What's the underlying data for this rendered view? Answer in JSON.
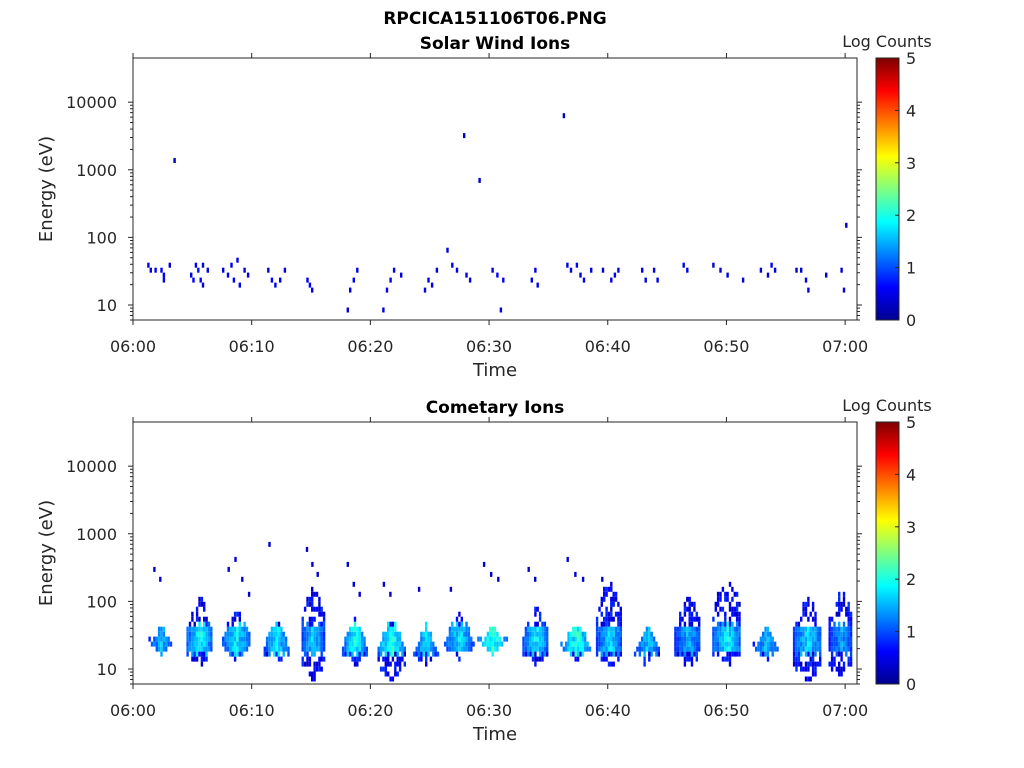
{
  "figure": {
    "title": "RPCICA151106T06.PNG"
  },
  "chart_data": [
    {
      "type": "heatmap",
      "title": "Solar Wind Ions",
      "xlabel": "Time",
      "ylabel": "Energy (eV)",
      "x_ticks": [
        "06:00",
        "06:10",
        "06:20",
        "06:30",
        "06:40",
        "06:50",
        "07:00"
      ],
      "xlim": [
        "06:00",
        "07:01"
      ],
      "y_scale": "log",
      "y_ticks": [
        10,
        100,
        1000,
        10000
      ],
      "y_tick_labels": [
        "10",
        "100",
        "1000",
        "10000"
      ],
      "ylim": [
        6,
        45000
      ],
      "colorbar": {
        "label": "Log Counts",
        "range": [
          0,
          5
        ],
        "ticks": [
          "0",
          "1",
          "2",
          "3",
          "4",
          "5"
        ],
        "colormap": "jet"
      },
      "cells": [
        {
          "t": 1.2,
          "e": 38,
          "c": 0.5
        },
        {
          "t": 1.4,
          "e": 33,
          "c": 0.5
        },
        {
          "t": 1.8,
          "e": 33,
          "c": 0.6
        },
        {
          "t": 2.3,
          "e": 33,
          "c": 0.6
        },
        {
          "t": 2.5,
          "e": 28,
          "c": 0.5
        },
        {
          "t": 2.5,
          "e": 24,
          "c": 0.5
        },
        {
          "t": 3.0,
          "e": 38,
          "c": 0.4
        },
        {
          "t": 3.4,
          "e": 1300,
          "c": 0.3
        },
        {
          "t": 4.8,
          "e": 28,
          "c": 0.5
        },
        {
          "t": 5.0,
          "e": 24,
          "c": 0.6
        },
        {
          "t": 5.2,
          "e": 38,
          "c": 0.6
        },
        {
          "t": 5.4,
          "e": 33,
          "c": 0.7
        },
        {
          "t": 5.6,
          "e": 24,
          "c": 0.6
        },
        {
          "t": 5.8,
          "e": 38,
          "c": 0.5
        },
        {
          "t": 5.8,
          "e": 20,
          "c": 0.5
        },
        {
          "t": 6.2,
          "e": 33,
          "c": 0.5
        },
        {
          "t": 7.5,
          "e": 33,
          "c": 0.4
        },
        {
          "t": 7.9,
          "e": 28,
          "c": 0.5
        },
        {
          "t": 8.2,
          "e": 38,
          "c": 0.5
        },
        {
          "t": 8.4,
          "e": 24,
          "c": 0.6
        },
        {
          "t": 8.7,
          "e": 48,
          "c": 0.5
        },
        {
          "t": 8.9,
          "e": 20,
          "c": 0.5
        },
        {
          "t": 9.3,
          "e": 33,
          "c": 0.5
        },
        {
          "t": 9.6,
          "e": 28,
          "c": 0.4
        },
        {
          "t": 11.3,
          "e": 33,
          "c": 0.4
        },
        {
          "t": 11.6,
          "e": 24,
          "c": 0.6
        },
        {
          "t": 11.9,
          "e": 20,
          "c": 0.6
        },
        {
          "t": 12.3,
          "e": 24,
          "c": 0.5
        },
        {
          "t": 12.7,
          "e": 33,
          "c": 0.5
        },
        {
          "t": 14.6,
          "e": 24,
          "c": 0.5
        },
        {
          "t": 14.8,
          "e": 20,
          "c": 0.6
        },
        {
          "t": 15.0,
          "e": 17,
          "c": 0.5
        },
        {
          "t": 18.0,
          "e": 8,
          "c": 0.4
        },
        {
          "t": 18.2,
          "e": 17,
          "c": 0.5
        },
        {
          "t": 18.5,
          "e": 24,
          "c": 0.6
        },
        {
          "t": 18.8,
          "e": 33,
          "c": 0.5
        },
        {
          "t": 21.0,
          "e": 8,
          "c": 0.4
        },
        {
          "t": 21.3,
          "e": 17,
          "c": 0.6
        },
        {
          "t": 21.6,
          "e": 24,
          "c": 0.6
        },
        {
          "t": 21.9,
          "e": 33,
          "c": 0.5
        },
        {
          "t": 22.5,
          "e": 28,
          "c": 0.5
        },
        {
          "t": 24.5,
          "e": 17,
          "c": 0.6
        },
        {
          "t": 24.8,
          "e": 24,
          "c": 0.6
        },
        {
          "t": 25.1,
          "e": 20,
          "c": 0.5
        },
        {
          "t": 25.5,
          "e": 33,
          "c": 0.5
        },
        {
          "t": 26.4,
          "e": 65,
          "c": 0.4
        },
        {
          "t": 26.8,
          "e": 38,
          "c": 0.5
        },
        {
          "t": 27.2,
          "e": 33,
          "c": 0.6
        },
        {
          "t": 27.8,
          "e": 3300,
          "c": 0.3
        },
        {
          "t": 28.0,
          "e": 28,
          "c": 0.5
        },
        {
          "t": 28.3,
          "e": 24,
          "c": 0.5
        },
        {
          "t": 29.1,
          "e": 650,
          "c": 0.3
        },
        {
          "t": 30.2,
          "e": 33,
          "c": 0.5
        },
        {
          "t": 30.6,
          "e": 28,
          "c": 0.6
        },
        {
          "t": 30.9,
          "e": 8,
          "c": 0.5
        },
        {
          "t": 31.1,
          "e": 24,
          "c": 0.6
        },
        {
          "t": 33.5,
          "e": 24,
          "c": 0.5
        },
        {
          "t": 33.8,
          "e": 33,
          "c": 0.5
        },
        {
          "t": 34.0,
          "e": 20,
          "c": 0.5
        },
        {
          "t": 36.2,
          "e": 6700,
          "c": 0.3
        },
        {
          "t": 36.5,
          "e": 38,
          "c": 0.5
        },
        {
          "t": 36.8,
          "e": 33,
          "c": 0.5
        },
        {
          "t": 37.3,
          "e": 38,
          "c": 0.6
        },
        {
          "t": 37.6,
          "e": 28,
          "c": 0.5
        },
        {
          "t": 37.9,
          "e": 24,
          "c": 0.5
        },
        {
          "t": 38.5,
          "e": 33,
          "c": 0.5
        },
        {
          "t": 39.5,
          "e": 33,
          "c": 0.4
        },
        {
          "t": 40.2,
          "e": 24,
          "c": 0.5
        },
        {
          "t": 40.5,
          "e": 28,
          "c": 0.5
        },
        {
          "t": 40.8,
          "e": 33,
          "c": 0.6
        },
        {
          "t": 42.8,
          "e": 33,
          "c": 0.5
        },
        {
          "t": 43.1,
          "e": 24,
          "c": 0.5
        },
        {
          "t": 43.8,
          "e": 33,
          "c": 0.4
        },
        {
          "t": 44.1,
          "e": 24,
          "c": 0.5
        },
        {
          "t": 46.3,
          "e": 38,
          "c": 0.5
        },
        {
          "t": 46.6,
          "e": 33,
          "c": 0.5
        },
        {
          "t": 48.8,
          "e": 38,
          "c": 0.4
        },
        {
          "t": 49.4,
          "e": 33,
          "c": 0.4
        },
        {
          "t": 50.0,
          "e": 28,
          "c": 0.4
        },
        {
          "t": 51.3,
          "e": 24,
          "c": 0.5
        },
        {
          "t": 52.8,
          "e": 33,
          "c": 0.5
        },
        {
          "t": 53.4,
          "e": 28,
          "c": 0.4
        },
        {
          "t": 53.7,
          "e": 38,
          "c": 0.6
        },
        {
          "t": 54.0,
          "e": 33,
          "c": 0.5
        },
        {
          "t": 55.8,
          "e": 33,
          "c": 0.4
        },
        {
          "t": 56.2,
          "e": 33,
          "c": 0.4
        },
        {
          "t": 56.6,
          "e": 24,
          "c": 0.5
        },
        {
          "t": 56.8,
          "e": 17,
          "c": 0.5
        },
        {
          "t": 58.3,
          "e": 28,
          "c": 0.4
        },
        {
          "t": 59.6,
          "e": 33,
          "c": 0.4
        },
        {
          "t": 59.8,
          "e": 17,
          "c": 0.5
        },
        {
          "t": 60.0,
          "e": 150,
          "c": 0.3
        }
      ]
    },
    {
      "type": "heatmap",
      "title": "Cometary Ions",
      "xlabel": "Time",
      "ylabel": "Energy (eV)",
      "x_ticks": [
        "06:00",
        "06:10",
        "06:20",
        "06:30",
        "06:40",
        "06:50",
        "07:00"
      ],
      "xlim": [
        "06:00",
        "07:01"
      ],
      "y_scale": "log",
      "y_ticks": [
        10,
        100,
        1000,
        10000
      ],
      "y_tick_labels": [
        "10",
        "100",
        "1000",
        "10000"
      ],
      "ylim": [
        6,
        45000
      ],
      "colorbar": {
        "label": "Log Counts",
        "range": [
          0,
          5
        ],
        "ticks": [
          "0",
          "1",
          "2",
          "3",
          "4",
          "5"
        ],
        "colormap": "jet"
      },
      "bursts": [
        {
          "t0": 1.3,
          "t1": 3.3,
          "peak": 1.6,
          "lo": 17,
          "hi": 45,
          "sparse": [
            300,
            230
          ]
        },
        {
          "t0": 4.5,
          "t1": 6.6,
          "peak": 2.0,
          "lo": 11,
          "hi": 120,
          "sparse": []
        },
        {
          "t0": 7.5,
          "t1": 9.8,
          "peak": 1.9,
          "lo": 14,
          "hi": 80,
          "sparse": [
            320,
            400,
            200,
            130
          ]
        },
        {
          "t0": 11.0,
          "t1": 13.0,
          "peak": 1.9,
          "lo": 11,
          "hi": 60,
          "sparse": [
            750
          ]
        },
        {
          "t0": 14.2,
          "t1": 16.0,
          "peak": 1.8,
          "lo": 7,
          "hi": 180,
          "sparse": [
            580,
            350,
            260
          ]
        },
        {
          "t0": 17.6,
          "t1": 19.6,
          "peak": 2.0,
          "lo": 11,
          "hi": 60,
          "sparse": [
            330,
            180,
            120
          ]
        },
        {
          "t0": 20.6,
          "t1": 22.8,
          "peak": 2.2,
          "lo": 7,
          "hi": 55,
          "sparse": [
            190,
            130
          ]
        },
        {
          "t0": 23.6,
          "t1": 25.6,
          "peak": 1.8,
          "lo": 11,
          "hi": 45,
          "sparse": [
            150
          ]
        },
        {
          "t0": 26.2,
          "t1": 28.6,
          "peak": 1.8,
          "lo": 14,
          "hi": 70,
          "sparse": [
            150
          ]
        },
        {
          "t0": 29.0,
          "t1": 31.4,
          "peak": 2.2,
          "lo": 17,
          "hi": 45,
          "sparse": [
            380,
            270,
            210
          ]
        },
        {
          "t0": 32.8,
          "t1": 35.0,
          "peak": 1.9,
          "lo": 11,
          "hi": 90,
          "sparse": [
            300,
            230
          ]
        },
        {
          "t0": 36.0,
          "t1": 38.6,
          "peak": 2.1,
          "lo": 14,
          "hi": 50,
          "sparse": [
            450,
            250,
            220
          ]
        },
        {
          "t0": 39.0,
          "t1": 41.2,
          "peak": 1.8,
          "lo": 11,
          "hi": 220,
          "sparse": [
            200
          ]
        },
        {
          "t0": 42.2,
          "t1": 44.4,
          "peak": 1.7,
          "lo": 11,
          "hi": 45,
          "sparse": []
        },
        {
          "t0": 45.6,
          "t1": 47.8,
          "peak": 1.6,
          "lo": 11,
          "hi": 130,
          "sparse": []
        },
        {
          "t0": 48.8,
          "t1": 51.2,
          "peak": 1.9,
          "lo": 11,
          "hi": 220,
          "sparse": []
        },
        {
          "t0": 52.2,
          "t1": 54.4,
          "peak": 1.6,
          "lo": 14,
          "hi": 45,
          "sparse": []
        },
        {
          "t0": 55.6,
          "t1": 58.0,
          "peak": 1.8,
          "lo": 7,
          "hi": 120,
          "sparse": []
        },
        {
          "t0": 58.6,
          "t1": 60.6,
          "peak": 1.5,
          "lo": 7,
          "hi": 150,
          "sparse": []
        }
      ]
    }
  ]
}
